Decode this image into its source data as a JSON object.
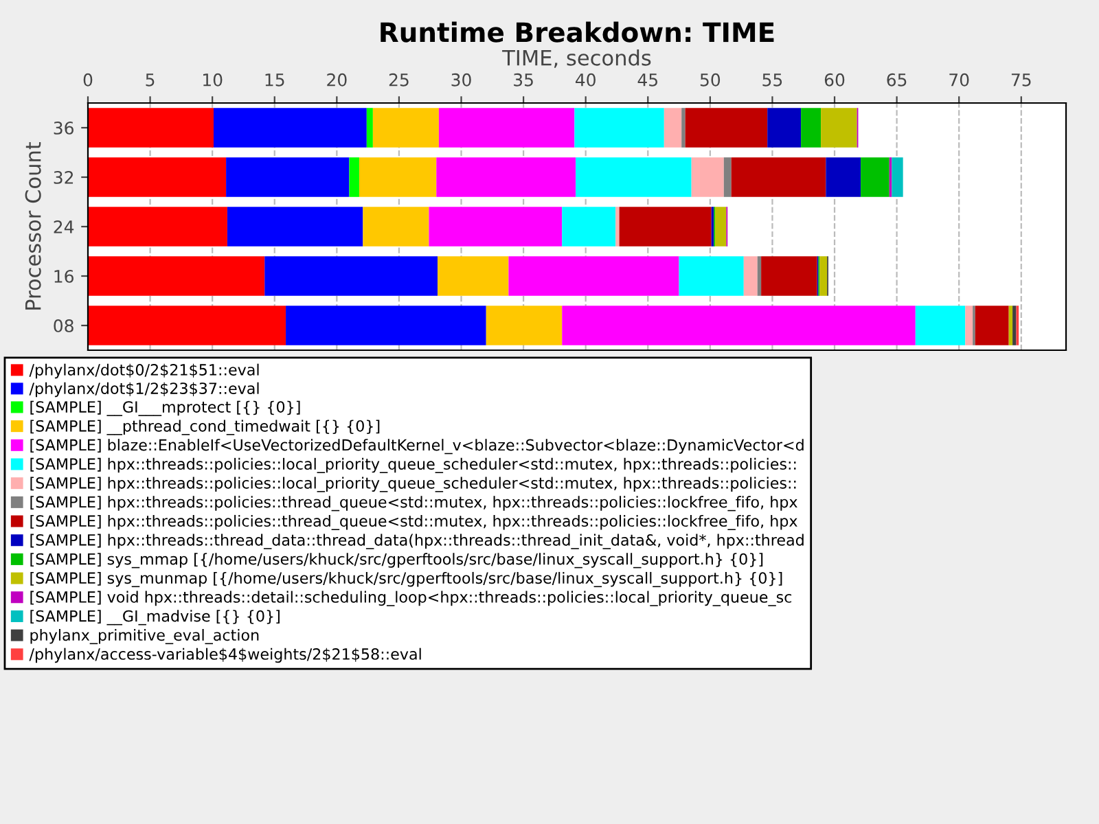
{
  "chart_data": {
    "type": "bar",
    "orientation": "horizontal",
    "stacked": true,
    "title": "Runtime Breakdown: TIME",
    "xlabel": "TIME, seconds",
    "ylabel": "Processor Count",
    "categories": [
      "36",
      "32",
      "24",
      "16",
      "08"
    ],
    "xlim": [
      0,
      78.6
    ],
    "xticks": [
      0,
      5,
      10,
      15,
      20,
      25,
      30,
      35,
      40,
      45,
      50,
      55,
      60,
      65,
      70,
      75
    ],
    "grid": "x",
    "legend": "bottom",
    "series": [
      {
        "name": "/phylanx/dot$0/2$21$51::eval",
        "color": "#ff0000",
        "values": [
          10.1,
          11.1,
          11.2,
          14.2,
          15.9
        ]
      },
      {
        "name": "/phylanx/dot$1/2$23$37::eval",
        "color": "#0000ff",
        "values": [
          12.3,
          9.9,
          10.9,
          13.9,
          16.1
        ]
      },
      {
        "name": "[SAMPLE] __GI___mprotect [{} {0}]",
        "color": "#00ff00",
        "values": [
          0.5,
          0.8,
          0,
          0,
          0
        ]
      },
      {
        "name": "[SAMPLE] __pthread_cond_timedwait [{} {0}]",
        "color": "#ffc800",
        "values": [
          5.3,
          6.2,
          5.3,
          5.7,
          6.1
        ]
      },
      {
        "name": "[SAMPLE] blaze::EnableIf<UseVectorizedDefaultKernel_v<blaze::Subvector<blaze::DynamicVector<d",
        "color": "#ff00ff",
        "values": [
          10.9,
          11.2,
          10.7,
          13.7,
          28.4
        ]
      },
      {
        "name": "[SAMPLE] hpx::threads::policies::local_priority_queue_scheduler<std::mutex, hpx::threads::policies::",
        "color": "#00ffff",
        "values": [
          7.2,
          9.3,
          4.3,
          5.2,
          4.0
        ]
      },
      {
        "name": "[SAMPLE] hpx::threads::policies::local_priority_queue_scheduler<std::mutex, hpx::threads::policies::",
        "color": "#ffafaf",
        "values": [
          1.4,
          2.6,
          0.3,
          1.1,
          0.6
        ]
      },
      {
        "name": "[SAMPLE] hpx::threads::policies::thread_queue<std::mutex, hpx::threads::policies::lockfree_fifo, hpx",
        "color": "#808080",
        "values": [
          0.3,
          0.6,
          0,
          0.3,
          0.2
        ]
      },
      {
        "name": "[SAMPLE] hpx::threads::policies::thread_queue<std::mutex, hpx::threads::policies::lockfree_fifo, hpx",
        "color": "#c00000",
        "values": [
          6.6,
          7.6,
          7.4,
          4.5,
          2.7
        ]
      },
      {
        "name": "[SAMPLE] hpx::threads::thread_data::thread_data(hpx::threads::thread_init_data&, void*, hpx::thread",
        "color": "#0000c0",
        "values": [
          2.7,
          2.8,
          0.2,
          0.1,
          0
        ]
      },
      {
        "name": "[SAMPLE] sys_mmap [{/home/users/khuck/src/gperftools/src/base/linux_syscall_support.h} {0}]",
        "color": "#00c000",
        "values": [
          1.6,
          2.3,
          0.1,
          0.1,
          0
        ]
      },
      {
        "name": "[SAMPLE] sys_munmap [{/home/users/khuck/src/gperftools/src/base/linux_syscall_support.h} {0}]",
        "color": "#c0c000",
        "values": [
          2.9,
          0,
          0.9,
          0.6,
          0.3
        ]
      },
      {
        "name": "[SAMPLE] void hpx::threads::detail::scheduling_loop<hpx::threads::policies::local_priority_queue_sc",
        "color": "#c000c0",
        "values": [
          0.1,
          0.2,
          0.1,
          0,
          0
        ]
      },
      {
        "name": "[SAMPLE] __GI_madvise [{} {0}]",
        "color": "#00c0c0",
        "values": [
          0,
          0.9,
          0,
          0,
          0
        ]
      },
      {
        "name": "phylanx_primitive_eval_action",
        "color": "#404040",
        "values": [
          0,
          0,
          0,
          0.1,
          0.3
        ]
      },
      {
        "name": "/phylanx/access-variable$4$weights/2$21$58::eval",
        "color": "#ff4040",
        "values": [
          0,
          0,
          0,
          0,
          0.2
        ]
      }
    ]
  }
}
